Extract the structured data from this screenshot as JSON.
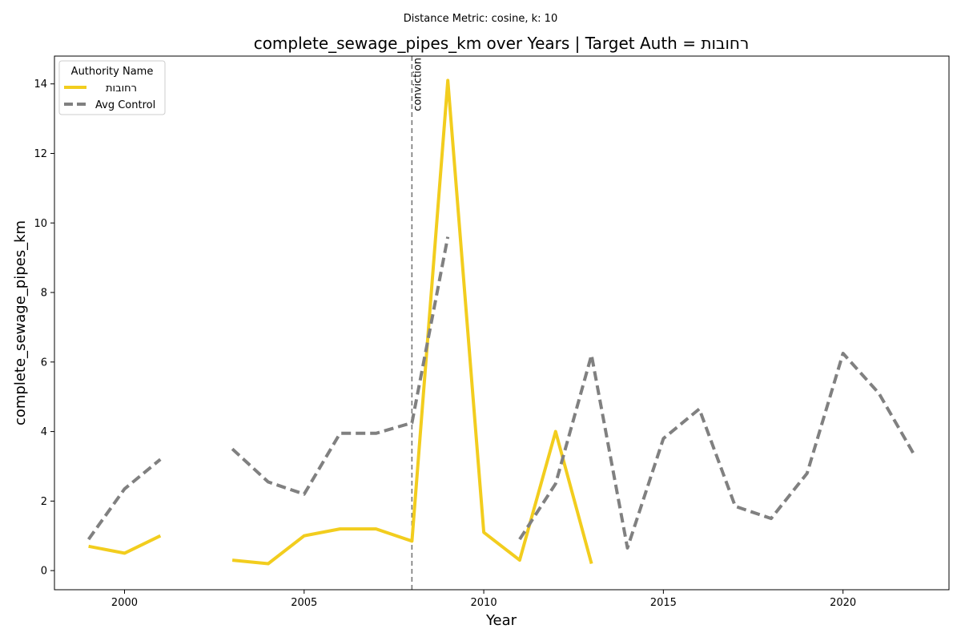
{
  "suptitle": "Distance Metric: cosine, k: 10",
  "chart_data": {
    "type": "line",
    "title": "complete_sewage_pipes_km over Years | Target Auth = רחובות",
    "xlabel": "Year",
    "ylabel": "complete_sewage_pipes_km",
    "xlim": [
      1998.05,
      2022.95
    ],
    "ylim": [
      -0.55,
      14.8
    ],
    "x_ticks": [
      2000,
      2005,
      2010,
      2015,
      2020
    ],
    "y_ticks": [
      0,
      2,
      4,
      6,
      8,
      10,
      12,
      14
    ],
    "grid": false,
    "legend": {
      "title": "Authority Name",
      "placement": "top-left"
    },
    "series": [
      {
        "name": "רחובות",
        "color": "#f2cd1e",
        "style": "solid",
        "points": [
          [
            1999,
            0.7
          ],
          [
            2000,
            0.5
          ],
          [
            2001,
            1.0
          ],
          [
            2002,
            null
          ],
          [
            2003,
            0.3
          ],
          [
            2004,
            0.2
          ],
          [
            2005,
            1.0
          ],
          [
            2006,
            1.2
          ],
          [
            2007,
            1.2
          ],
          [
            2008,
            0.85
          ],
          [
            2009,
            14.1
          ],
          [
            2010,
            1.1
          ],
          [
            2011,
            0.3
          ],
          [
            2012,
            4.0
          ],
          [
            2013,
            0.2
          ]
        ]
      },
      {
        "name": "Avg Control",
        "color": "#808080",
        "style": "dashed",
        "points": [
          [
            1999,
            0.9
          ],
          [
            2000,
            2.35
          ],
          [
            2001,
            3.2
          ],
          [
            2002,
            null
          ],
          [
            2003,
            3.5
          ],
          [
            2004,
            2.55
          ],
          [
            2005,
            2.2
          ],
          [
            2006,
            3.95
          ],
          [
            2007,
            3.95
          ],
          [
            2008,
            4.25
          ],
          [
            2009,
            9.6
          ],
          [
            2010,
            null
          ],
          [
            2011,
            0.9
          ],
          [
            2012,
            2.5
          ],
          [
            2013,
            6.2
          ],
          [
            2014,
            0.65
          ],
          [
            2015,
            3.8
          ],
          [
            2016,
            4.65
          ],
          [
            2017,
            1.85
          ],
          [
            2018,
            1.5
          ],
          [
            2019,
            2.8
          ],
          [
            2020,
            6.25
          ],
          [
            2021,
            5.1
          ],
          [
            2022,
            3.3
          ]
        ]
      }
    ],
    "annotations": [
      {
        "x": 2008,
        "label": "conviction"
      }
    ]
  }
}
